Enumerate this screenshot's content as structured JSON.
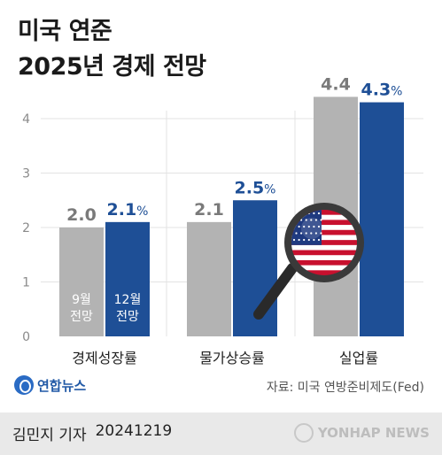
{
  "title_line1": "미국 연준",
  "title_line2": "2025년 경제 전망",
  "chart_data": {
    "type": "bar",
    "title": "미국 연준 2025년 경제 전망",
    "categories": [
      "경제성장률",
      "물가상승률",
      "실업률"
    ],
    "series": [
      {
        "name": "9월 전망",
        "values": [
          2.0,
          2.1,
          4.4
        ],
        "labels": [
          "2.0",
          "2.1",
          "4.4"
        ],
        "color": "#b3b3b3"
      },
      {
        "name": "12월 전망",
        "values": [
          2.1,
          2.5,
          4.3
        ],
        "labels": [
          "2.1",
          "2.5",
          "4.3"
        ],
        "color": "#1e4f96",
        "unit": "%"
      }
    ],
    "legend_in_bars": [
      [
        "9월",
        "전망"
      ],
      [
        "12월",
        "전망"
      ]
    ],
    "yticks": [
      0,
      1,
      2,
      3,
      4
    ],
    "ylim": [
      0,
      4.5
    ],
    "grid": true
  },
  "logo_text": "연합뉴스",
  "source": "자료: 미국 연방준비제도(Fed)",
  "reporter": "김민지 기자",
  "date": "20241219",
  "agency": "YONHAP NEWS",
  "icons": [
    "magnifier-icon",
    "us-flag-icon"
  ]
}
